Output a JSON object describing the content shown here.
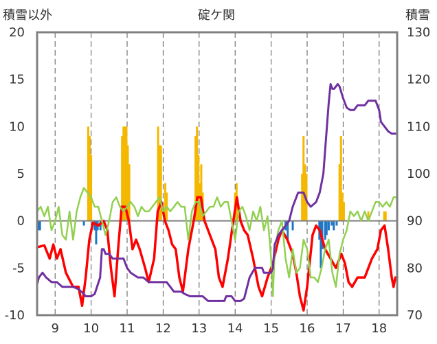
{
  "chart_data": {
    "type": "line",
    "title": "碇ケ関",
    "left_axis_label": "積雪以外",
    "right_axis_label": "積雪",
    "x_ticks": [
      "9",
      "10",
      "11",
      "12",
      "13",
      "14",
      "15",
      "16",
      "17",
      "18"
    ],
    "xlim": [
      8.5,
      18.5
    ],
    "ylim_left": [
      -10,
      20
    ],
    "yticks_left": [
      "-10",
      "-5",
      "0",
      "5",
      "10",
      "15",
      "20"
    ],
    "ylim_right": [
      70,
      130
    ],
    "yticks_right": [
      "70",
      "80",
      "90",
      "100",
      "110",
      "120",
      "130"
    ],
    "grid": "vertical dashed at each day",
    "colors": {
      "precip_bar": "#f5b800",
      "negative_bar": "#1f77c4",
      "temperature": "#ff0000",
      "sunshine": "#92d050",
      "snow_depth": "#7030a0",
      "zero_line": "#808080",
      "frame": "#808080"
    },
    "bars_positive": [
      {
        "x": 9.92,
        "y": 10
      },
      {
        "x": 9.96,
        "y": 9
      },
      {
        "x": 10.0,
        "y": 7
      },
      {
        "x": 10.86,
        "y": 9
      },
      {
        "x": 10.9,
        "y": 10
      },
      {
        "x": 10.94,
        "y": 10
      },
      {
        "x": 10.98,
        "y": 10
      },
      {
        "x": 11.02,
        "y": 8
      },
      {
        "x": 11.06,
        "y": 6
      },
      {
        "x": 11.86,
        "y": 10
      },
      {
        "x": 11.9,
        "y": 8
      },
      {
        "x": 11.94,
        "y": 8
      },
      {
        "x": 12.06,
        "y": 4
      },
      {
        "x": 12.1,
        "y": 3
      },
      {
        "x": 12.9,
        "y": 9
      },
      {
        "x": 12.94,
        "y": 10
      },
      {
        "x": 12.98,
        "y": 7
      },
      {
        "x": 13.02,
        "y": 4
      },
      {
        "x": 13.06,
        "y": 6
      },
      {
        "x": 13.1,
        "y": 3
      },
      {
        "x": 14.0,
        "y": 3
      },
      {
        "x": 14.04,
        "y": 4
      },
      {
        "x": 15.86,
        "y": 5
      },
      {
        "x": 15.9,
        "y": 9
      },
      {
        "x": 15.94,
        "y": 6
      },
      {
        "x": 15.98,
        "y": 5
      },
      {
        "x": 16.9,
        "y": 6
      },
      {
        "x": 16.94,
        "y": 9
      },
      {
        "x": 16.98,
        "y": 3
      },
      {
        "x": 17.02,
        "y": 2
      },
      {
        "x": 17.7,
        "y": 1
      },
      {
        "x": 18.14,
        "y": 1
      },
      {
        "x": 18.18,
        "y": 1
      }
    ],
    "bars_negative": [
      {
        "x": 8.54,
        "y": -1
      },
      {
        "x": 8.58,
        "y": -1
      },
      {
        "x": 9.8,
        "y": -0.5
      },
      {
        "x": 10.1,
        "y": -1
      },
      {
        "x": 10.14,
        "y": -2.5
      },
      {
        "x": 10.18,
        "y": -1
      },
      {
        "x": 10.26,
        "y": -1
      },
      {
        "x": 15.4,
        "y": -1
      },
      {
        "x": 15.46,
        "y": -2
      },
      {
        "x": 15.6,
        "y": -1
      },
      {
        "x": 16.34,
        "y": -2
      },
      {
        "x": 16.38,
        "y": -5
      },
      {
        "x": 16.42,
        "y": -3
      },
      {
        "x": 16.5,
        "y": -2
      },
      {
        "x": 16.54,
        "y": -1.5
      },
      {
        "x": 16.6,
        "y": -1
      },
      {
        "x": 16.68,
        "y": -0.5
      },
      {
        "x": 16.74,
        "y": -1
      },
      {
        "x": 16.82,
        "y": -0.5
      }
    ],
    "series": [
      {
        "name": "",
        "axis": "left",
        "color": "#ff0000",
        "points": [
          [
            8.5,
            -2.8
          ],
          [
            8.7,
            -2.6
          ],
          [
            8.85,
            -4
          ],
          [
            8.95,
            -2.5
          ],
          [
            9.05,
            -4
          ],
          [
            9.15,
            -3
          ],
          [
            9.3,
            -5.5
          ],
          [
            9.5,
            -7
          ],
          [
            9.65,
            -7
          ],
          [
            9.75,
            -9
          ],
          [
            9.85,
            -6
          ],
          [
            9.95,
            -2
          ],
          [
            10.05,
            -0.2
          ],
          [
            10.2,
            -0.5
          ],
          [
            10.35,
            0
          ],
          [
            10.45,
            -1
          ],
          [
            10.55,
            -5
          ],
          [
            10.65,
            -8
          ],
          [
            10.75,
            -3
          ],
          [
            10.85,
            1.5
          ],
          [
            10.95,
            1.5
          ],
          [
            11.05,
            0
          ],
          [
            11.15,
            -3
          ],
          [
            11.25,
            -2
          ],
          [
            11.35,
            -3
          ],
          [
            11.5,
            -5
          ],
          [
            11.6,
            -6.5
          ],
          [
            11.75,
            -4
          ],
          [
            11.85,
            1
          ],
          [
            11.95,
            2
          ],
          [
            12.05,
            0
          ],
          [
            12.15,
            -1
          ],
          [
            12.25,
            -2.5
          ],
          [
            12.35,
            -3
          ],
          [
            12.45,
            -6
          ],
          [
            12.55,
            -7.5
          ],
          [
            12.7,
            -3
          ],
          [
            12.85,
            0
          ],
          [
            12.95,
            2.5
          ],
          [
            13.05,
            2.5
          ],
          [
            13.15,
            0
          ],
          [
            13.3,
            -1.5
          ],
          [
            13.45,
            -3
          ],
          [
            13.55,
            -6
          ],
          [
            13.65,
            -7
          ],
          [
            13.8,
            -4
          ],
          [
            13.95,
            0
          ],
          [
            14.05,
            2.5
          ],
          [
            14.15,
            0
          ],
          [
            14.25,
            -1
          ],
          [
            14.35,
            -1.5
          ],
          [
            14.5,
            -4
          ],
          [
            14.65,
            -7
          ],
          [
            14.75,
            -8
          ],
          [
            14.9,
            -6
          ],
          [
            15.05,
            -4.5
          ],
          [
            15.2,
            -2
          ],
          [
            15.3,
            -1
          ],
          [
            15.45,
            -2
          ],
          [
            15.6,
            -3.5
          ],
          [
            15.7,
            -5.5
          ],
          [
            15.8,
            -8
          ],
          [
            15.9,
            -9.5
          ],
          [
            16.0,
            -7
          ],
          [
            16.15,
            -1.5
          ],
          [
            16.25,
            -0.5
          ],
          [
            16.35,
            -1
          ],
          [
            16.5,
            -3
          ],
          [
            16.65,
            -4
          ],
          [
            16.8,
            -5
          ],
          [
            16.95,
            -3.5
          ],
          [
            17.05,
            -4.5
          ],
          [
            17.15,
            -6.5
          ],
          [
            17.25,
            -7
          ],
          [
            17.4,
            -6
          ],
          [
            17.6,
            -6
          ],
          [
            17.8,
            -4
          ],
          [
            17.95,
            -3
          ],
          [
            18.05,
            -1
          ],
          [
            18.15,
            -0.5
          ],
          [
            18.25,
            -3
          ],
          [
            18.35,
            -6
          ],
          [
            18.4,
            -7
          ],
          [
            18.45,
            -6
          ],
          [
            18.5,
            -6
          ]
        ]
      },
      {
        "name": "",
        "axis": "left",
        "color": "#92d050",
        "points": [
          [
            8.5,
            1
          ],
          [
            8.6,
            1.5
          ],
          [
            8.7,
            0.5
          ],
          [
            8.8,
            1.5
          ],
          [
            8.9,
            -1
          ],
          [
            9.0,
            0
          ],
          [
            9.1,
            1.5
          ],
          [
            9.2,
            -1.5
          ],
          [
            9.3,
            -2
          ],
          [
            9.4,
            1
          ],
          [
            9.5,
            -2
          ],
          [
            9.6,
            1
          ],
          [
            9.7,
            2.5
          ],
          [
            9.8,
            3.5
          ],
          [
            9.9,
            3
          ],
          [
            10.0,
            2.5
          ],
          [
            10.1,
            1.5
          ],
          [
            10.2,
            1.5
          ],
          [
            10.3,
            0
          ],
          [
            10.4,
            -1.5
          ],
          [
            10.5,
            0
          ],
          [
            10.6,
            2
          ],
          [
            10.7,
            2.5
          ],
          [
            10.8,
            1.5
          ],
          [
            10.9,
            1
          ],
          [
            11.0,
            1.5
          ],
          [
            11.1,
            2
          ],
          [
            11.2,
            1.5
          ],
          [
            11.3,
            0.5
          ],
          [
            11.4,
            1.5
          ],
          [
            11.5,
            1
          ],
          [
            11.6,
            1
          ],
          [
            11.7,
            1.5
          ],
          [
            11.8,
            2
          ],
          [
            11.9,
            2.5
          ],
          [
            12.0,
            1
          ],
          [
            12.1,
            1.5
          ],
          [
            12.2,
            1
          ],
          [
            12.3,
            1.5
          ],
          [
            12.4,
            2
          ],
          [
            12.5,
            1.5
          ],
          [
            12.6,
            1.5
          ],
          [
            12.7,
            -2
          ],
          [
            12.8,
            1
          ],
          [
            12.9,
            2
          ],
          [
            13.0,
            2
          ],
          [
            13.1,
            0.5
          ],
          [
            13.2,
            1
          ],
          [
            13.3,
            1.5
          ],
          [
            13.4,
            1.5
          ],
          [
            13.5,
            2.5
          ],
          [
            13.6,
            1.5
          ],
          [
            13.7,
            2
          ],
          [
            13.8,
            2
          ],
          [
            13.9,
            0
          ],
          [
            14.0,
            -2
          ],
          [
            14.1,
            1
          ],
          [
            14.2,
            1.5
          ],
          [
            14.3,
            0.5
          ],
          [
            14.4,
            -1
          ],
          [
            14.5,
            1
          ],
          [
            14.6,
            0
          ],
          [
            14.7,
            1.5
          ],
          [
            14.8,
            -1
          ],
          [
            14.9,
            0.5
          ],
          [
            15.0,
            -4
          ],
          [
            15.05,
            -8
          ],
          [
            15.1,
            -3
          ],
          [
            15.2,
            -1
          ],
          [
            15.3,
            0
          ],
          [
            15.4,
            -4
          ],
          [
            15.5,
            -6
          ],
          [
            15.6,
            -3
          ],
          [
            15.7,
            -5.5
          ],
          [
            15.8,
            -5
          ],
          [
            15.9,
            -2
          ],
          [
            16.0,
            -3
          ],
          [
            16.1,
            -6
          ],
          [
            16.2,
            -6
          ],
          [
            16.3,
            -6.5
          ],
          [
            16.4,
            -5
          ],
          [
            16.5,
            -3
          ],
          [
            16.6,
            -2
          ],
          [
            16.7,
            -5.5
          ],
          [
            16.8,
            -7
          ],
          [
            16.9,
            -3.5
          ],
          [
            17.0,
            -2
          ],
          [
            17.1,
            -1
          ],
          [
            17.2,
            1
          ],
          [
            17.3,
            0.5
          ],
          [
            17.4,
            1
          ],
          [
            17.5,
            0
          ],
          [
            17.6,
            1
          ],
          [
            17.7,
            0
          ],
          [
            17.8,
            1
          ],
          [
            17.9,
            2
          ],
          [
            18.0,
            2
          ],
          [
            18.1,
            1.5
          ],
          [
            18.2,
            2
          ],
          [
            18.3,
            1.5
          ],
          [
            18.4,
            2.5
          ],
          [
            18.5,
            2.5
          ]
        ]
      },
      {
        "name": "",
        "axis": "right",
        "color": "#7030a0",
        "points": [
          [
            8.5,
            76.5
          ],
          [
            8.55,
            78
          ],
          [
            8.65,
            79
          ],
          [
            8.75,
            78
          ],
          [
            8.9,
            77
          ],
          [
            9.05,
            77
          ],
          [
            9.2,
            76
          ],
          [
            9.5,
            76
          ],
          [
            9.65,
            75.5
          ],
          [
            9.8,
            74.5
          ],
          [
            9.85,
            74
          ],
          [
            10.0,
            74
          ],
          [
            10.1,
            74.5
          ],
          [
            10.25,
            78
          ],
          [
            10.3,
            84
          ],
          [
            10.35,
            84
          ],
          [
            10.4,
            83
          ],
          [
            10.5,
            83
          ],
          [
            10.6,
            82
          ],
          [
            10.9,
            82
          ],
          [
            11.0,
            80
          ],
          [
            11.1,
            79
          ],
          [
            11.3,
            78
          ],
          [
            11.45,
            78
          ],
          [
            11.6,
            77
          ],
          [
            12.1,
            77
          ],
          [
            12.2,
            76
          ],
          [
            12.3,
            75
          ],
          [
            12.5,
            75
          ],
          [
            12.6,
            74.5
          ],
          [
            12.75,
            74
          ],
          [
            13.1,
            74
          ],
          [
            13.25,
            73
          ],
          [
            13.7,
            73
          ],
          [
            13.75,
            74
          ],
          [
            13.9,
            74
          ],
          [
            14.0,
            73
          ],
          [
            14.15,
            73
          ],
          [
            14.25,
            73.5
          ],
          [
            14.4,
            78
          ],
          [
            14.55,
            80
          ],
          [
            14.75,
            80
          ],
          [
            14.8,
            79
          ],
          [
            15.0,
            79
          ],
          [
            15.05,
            80
          ],
          [
            15.1,
            85
          ],
          [
            15.2,
            87
          ],
          [
            15.4,
            89
          ],
          [
            15.5,
            90
          ],
          [
            15.6,
            93
          ],
          [
            15.75,
            96
          ],
          [
            15.9,
            96
          ],
          [
            16.0,
            94
          ],
          [
            16.1,
            93
          ],
          [
            16.25,
            94
          ],
          [
            16.35,
            96
          ],
          [
            16.45,
            100
          ],
          [
            16.5,
            105
          ],
          [
            16.55,
            110
          ],
          [
            16.6,
            115
          ],
          [
            16.65,
            119
          ],
          [
            16.7,
            118
          ],
          [
            16.75,
            118
          ],
          [
            16.85,
            119
          ],
          [
            16.9,
            118.5
          ],
          [
            17.0,
            116
          ],
          [
            17.1,
            114
          ],
          [
            17.2,
            113.5
          ],
          [
            17.3,
            113.5
          ],
          [
            17.4,
            114.5
          ],
          [
            17.6,
            114.5
          ],
          [
            17.7,
            115.5
          ],
          [
            17.9,
            115.5
          ],
          [
            18.0,
            113.5
          ],
          [
            18.05,
            111
          ],
          [
            18.15,
            110
          ],
          [
            18.25,
            109
          ],
          [
            18.35,
            108.5
          ],
          [
            18.5,
            108.5
          ]
        ]
      }
    ]
  }
}
